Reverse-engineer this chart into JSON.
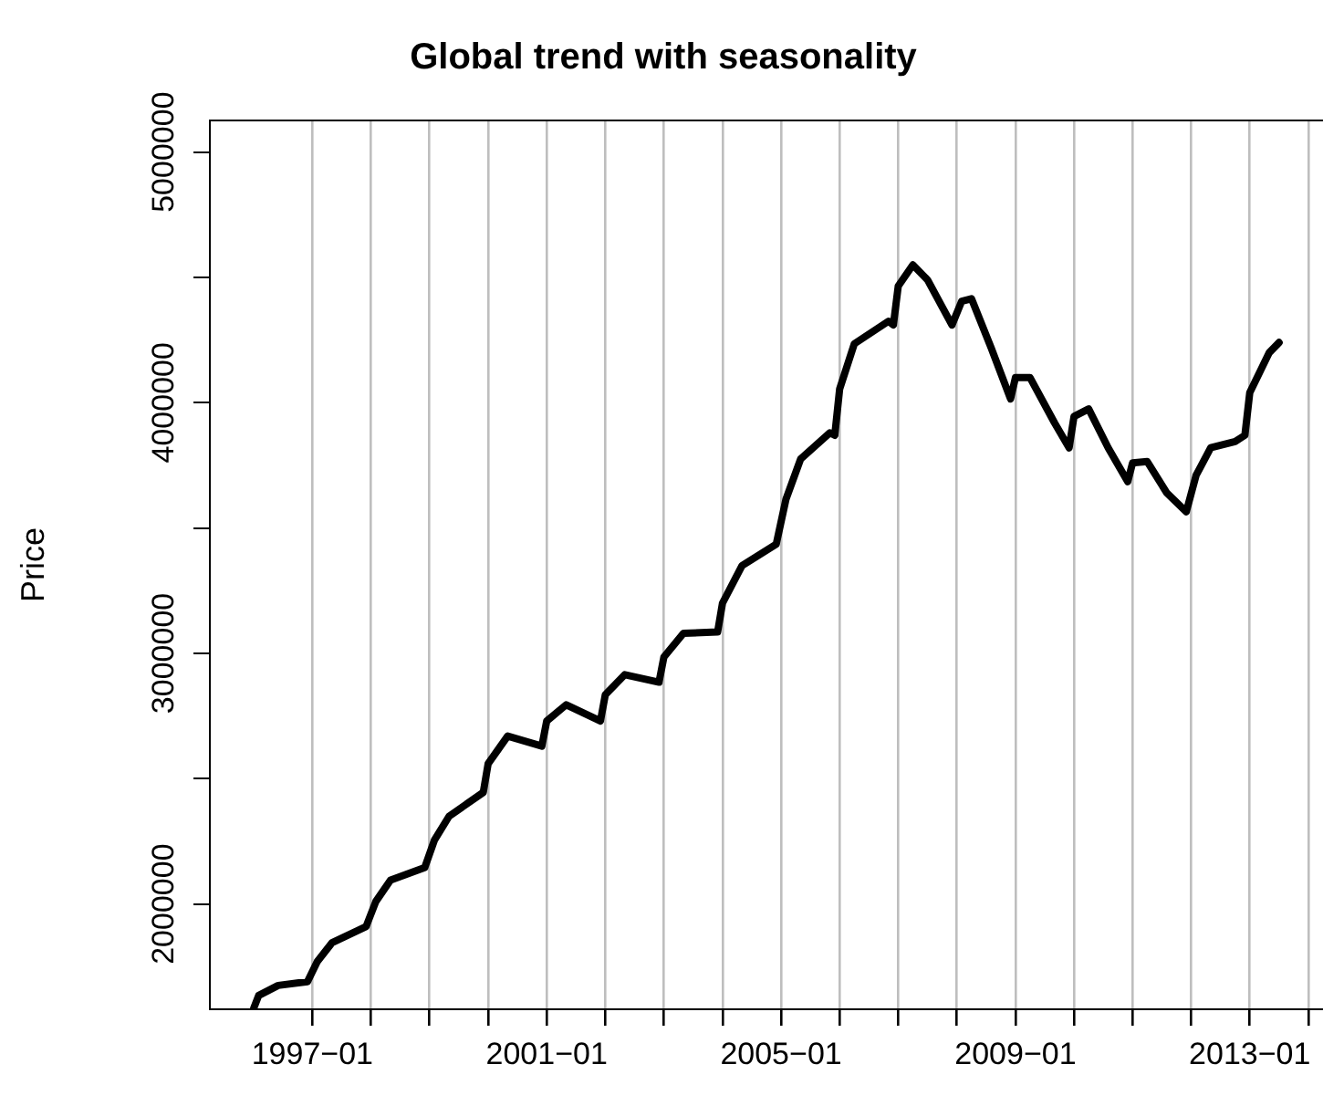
{
  "chart_data": {
    "type": "line",
    "title": "Global trend with seasonality",
    "ylabel": "Price",
    "x": [
      "1996-01",
      "1996-02",
      "1996-06",
      "1996-12",
      "1997-02",
      "1997-05",
      "1997-12",
      "1998-02",
      "1998-05",
      "1998-12",
      "1999-02",
      "1999-05",
      "1999-12",
      "2000-01",
      "2000-05",
      "2000-12",
      "2001-01",
      "2001-05",
      "2001-12",
      "2002-01",
      "2002-05",
      "2002-12",
      "2003-01",
      "2003-05",
      "2003-12",
      "2004-01",
      "2004-05",
      "2004-12",
      "2005-02",
      "2005-05",
      "2005-11",
      "2005-12",
      "2006-01",
      "2006-04",
      "2006-11",
      "2006-12",
      "2007-01",
      "2007-04",
      "2007-07",
      "2007-12",
      "2008-02",
      "2008-04",
      "2008-08",
      "2008-12",
      "2009-01",
      "2009-04",
      "2009-09",
      "2009-12",
      "2010-01",
      "2010-04",
      "2010-08",
      "2010-12",
      "2011-01",
      "2011-04",
      "2011-08",
      "2011-12",
      "2012-02",
      "2012-05",
      "2012-10",
      "2012-12",
      "2013-01",
      "2013-05",
      "2013-07"
    ],
    "series": [
      {
        "color": "#000000",
        "values": [
          1585000,
          1635000,
          1675000,
          1690000,
          1770000,
          1845000,
          1910000,
          2010000,
          2095000,
          2145000,
          2255000,
          2350000,
          2445000,
          2560000,
          2670000,
          2630000,
          2730000,
          2795000,
          2730000,
          2835000,
          2915000,
          2885000,
          2985000,
          3080000,
          3085000,
          3200000,
          3350000,
          3435000,
          3615000,
          3775000,
          3880000,
          3870000,
          4055000,
          4235000,
          4325000,
          4310000,
          4465000,
          4550000,
          4490000,
          4310000,
          4405000,
          4415000,
          4220000,
          4015000,
          4100000,
          4100000,
          3920000,
          3820000,
          3945000,
          3975000,
          3820000,
          3685000,
          3760000,
          3765000,
          3640000,
          3565000,
          3710000,
          3820000,
          3845000,
          3870000,
          4040000,
          4200000,
          4240000
        ]
      }
    ],
    "xlim": [
      "1995-04",
      "2014-04"
    ],
    "xticks": [
      {
        "value": "1997-01",
        "label": "1997−01"
      },
      {
        "value": "1998-01",
        "label": null
      },
      {
        "value": "1999-01",
        "label": null
      },
      {
        "value": "2000-01",
        "label": null
      },
      {
        "value": "2001-01",
        "label": "2001−01"
      },
      {
        "value": "2002-01",
        "label": null
      },
      {
        "value": "2003-01",
        "label": null
      },
      {
        "value": "2004-01",
        "label": null
      },
      {
        "value": "2005-01",
        "label": "2005−01"
      },
      {
        "value": "2006-01",
        "label": null
      },
      {
        "value": "2007-01",
        "label": null
      },
      {
        "value": "2008-01",
        "label": null
      },
      {
        "value": "2009-01",
        "label": "2009−01"
      },
      {
        "value": "2010-01",
        "label": null
      },
      {
        "value": "2011-01",
        "label": null
      },
      {
        "value": "2012-01",
        "label": null
      },
      {
        "value": "2013-01",
        "label": "2013−01"
      },
      {
        "value": "2014-01",
        "label": null
      }
    ],
    "ylim": [
      1580000,
      5126000
    ],
    "yticks": [
      2000000,
      {
        "value": 2500000,
        "label": null
      },
      3000000,
      {
        "value": 3500000,
        "label": null
      },
      4000000,
      {
        "value": 4500000,
        "label": null
      },
      5000000
    ],
    "grid": "x"
  }
}
